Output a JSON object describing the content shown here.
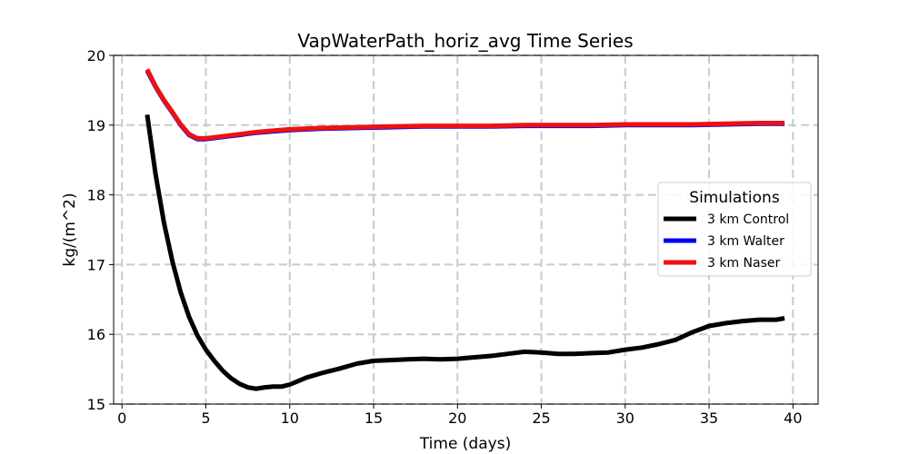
{
  "chart_data": {
    "type": "line",
    "title": "VapWaterPath_horiz_avg Time Series",
    "xlabel": "Time (days)",
    "ylabel": "kg/(m^2)",
    "xlim": [
      -0.5,
      41.5
    ],
    "ylim": [
      15,
      20
    ],
    "xticks": [
      0,
      5,
      10,
      15,
      20,
      25,
      30,
      35,
      40
    ],
    "yticks": [
      15,
      16,
      17,
      18,
      19,
      20
    ],
    "grid": true,
    "legend": {
      "title": "Simulations",
      "position": "center-right"
    },
    "series": [
      {
        "name": "3 km Control",
        "color": "#000000",
        "x": [
          1.5,
          2,
          2.5,
          3,
          3.5,
          4,
          4.5,
          5,
          5.5,
          6,
          6.5,
          7,
          7.5,
          8,
          8.5,
          9,
          9.5,
          10,
          10.5,
          11,
          12,
          13,
          14,
          15,
          16,
          17,
          18,
          19,
          20,
          21,
          22,
          23,
          24,
          25,
          26,
          27,
          28,
          29,
          30,
          31,
          32,
          33,
          34,
          35,
          36,
          37,
          38,
          39,
          39.5
        ],
        "y": [
          19.15,
          18.3,
          17.6,
          17.05,
          16.6,
          16.25,
          15.98,
          15.78,
          15.62,
          15.48,
          15.37,
          15.29,
          15.24,
          15.22,
          15.24,
          15.25,
          15.25,
          15.28,
          15.33,
          15.38,
          15.45,
          15.51,
          15.58,
          15.62,
          15.63,
          15.64,
          15.65,
          15.64,
          15.65,
          15.67,
          15.69,
          15.72,
          15.75,
          15.74,
          15.72,
          15.72,
          15.73,
          15.74,
          15.78,
          15.81,
          15.86,
          15.92,
          16.03,
          16.12,
          16.16,
          16.19,
          16.21,
          16.21,
          16.23
        ]
      },
      {
        "name": "3 km Walter",
        "color": "#0000ee",
        "x": [
          1.5,
          2,
          2.5,
          3,
          3.5,
          4,
          4.5,
          5,
          6,
          7,
          8,
          9,
          10,
          12,
          14,
          16,
          18,
          20,
          22,
          24,
          26,
          28,
          30,
          32,
          34,
          36,
          38,
          39.5
        ],
        "y": [
          19.78,
          19.55,
          19.35,
          19.18,
          19.0,
          18.86,
          18.8,
          18.8,
          18.83,
          18.86,
          18.89,
          18.91,
          18.93,
          18.95,
          18.96,
          18.97,
          18.98,
          18.98,
          18.98,
          18.99,
          18.99,
          18.99,
          19.0,
          19.0,
          19.0,
          19.01,
          19.02,
          19.02
        ]
      },
      {
        "name": "3 km Naser",
        "color": "#ee1111",
        "x": [
          1.5,
          2,
          2.5,
          3,
          3.5,
          4,
          4.5,
          5,
          6,
          7,
          8,
          9,
          10,
          12,
          14,
          16,
          18,
          20,
          22,
          24,
          26,
          28,
          30,
          32,
          34,
          36,
          38,
          39.5
        ],
        "y": [
          19.8,
          19.56,
          19.36,
          19.19,
          19.01,
          18.87,
          18.81,
          18.81,
          18.84,
          18.87,
          18.9,
          18.92,
          18.94,
          18.96,
          18.97,
          18.98,
          18.99,
          18.99,
          18.99,
          19.0,
          19.0,
          19.0,
          19.01,
          19.01,
          19.01,
          19.02,
          19.03,
          19.03
        ]
      }
    ]
  }
}
